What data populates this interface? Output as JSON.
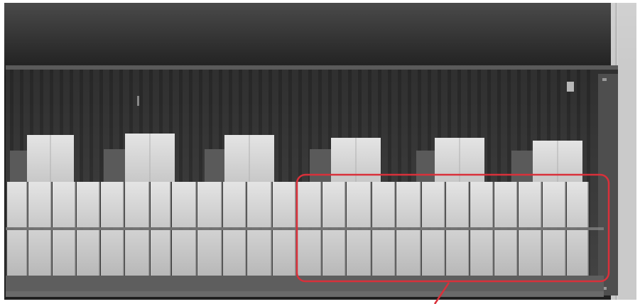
{
  "image": {
    "kind": "x-ray scan of a shipping container loaded with boxes",
    "colors": {
      "sky_dark": "#1a1a1a",
      "sky_mid": "#3a3a3a",
      "container_wall": "#3b3b3b",
      "container_floor": "#5c5c5c",
      "box_light": "#dcdcdc",
      "box_mid": "#c4c4c4",
      "box_shadow": "#9a9a9a",
      "highlight": "#d9303a"
    },
    "highlight_label": "",
    "top_row_boxes": 6,
    "lower_tiers": 2
  }
}
